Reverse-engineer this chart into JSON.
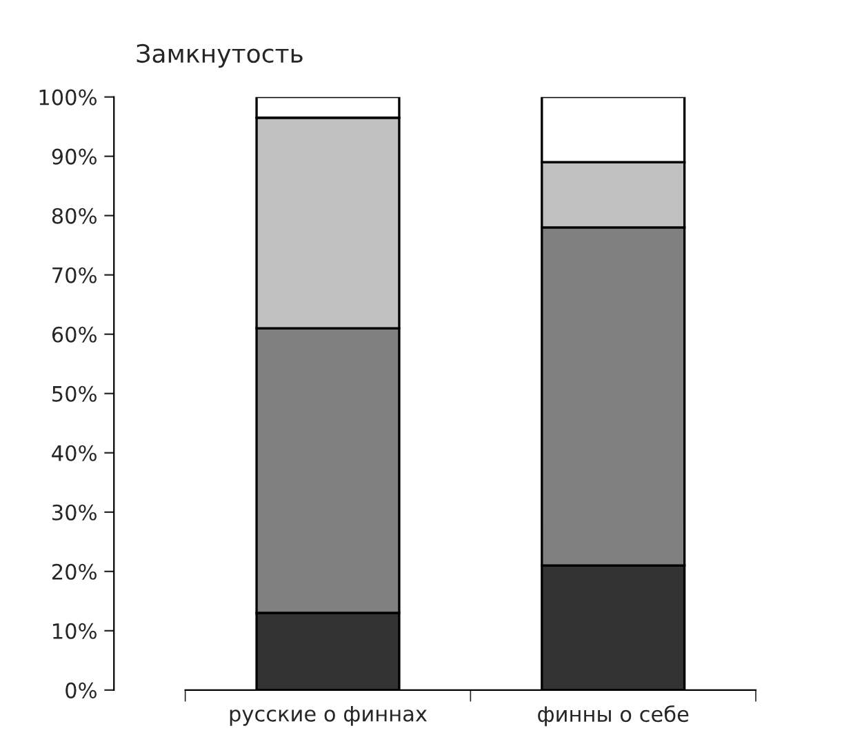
{
  "chart_data": {
    "type": "bar",
    "title": "Замкнутость",
    "stacked": true,
    "categories": [
      "русские о финнах",
      "финны о себе"
    ],
    "series": [
      {
        "color": "#333333",
        "values": [
          13,
          21
        ]
      },
      {
        "color": "#808080",
        "values": [
          48,
          57
        ]
      },
      {
        "color": "#c0c0c0",
        "values": [
          35.5,
          11
        ]
      },
      {
        "color": "#ffffff",
        "values": [
          3.5,
          11
        ]
      }
    ],
    "ylim": [
      0,
      100
    ],
    "yticks": [
      {
        "value": 0,
        "label": "0%"
      },
      {
        "value": 10,
        "label": "10%"
      },
      {
        "value": 20,
        "label": "20%"
      },
      {
        "value": 30,
        "label": "30%"
      },
      {
        "value": 40,
        "label": "40%"
      },
      {
        "value": 50,
        "label": "50%"
      },
      {
        "value": 60,
        "label": "60%"
      },
      {
        "value": 70,
        "label": "70%"
      },
      {
        "value": 80,
        "label": "80%"
      },
      {
        "value": 90,
        "label": "90%"
      },
      {
        "value": 100,
        "label": "100%"
      }
    ],
    "grid": false,
    "legend": false
  }
}
